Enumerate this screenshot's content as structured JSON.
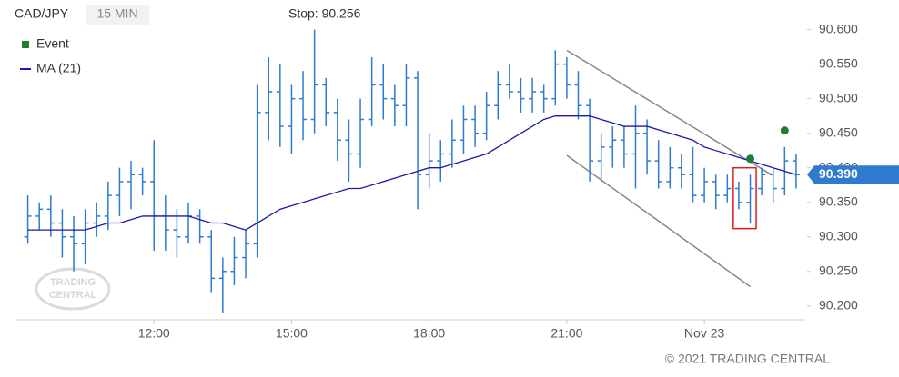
{
  "chart_data": {
    "type": "ohlc",
    "symbol": "CAD/JPY",
    "interval": "15 MIN",
    "stop_label": "Stop: 90.256",
    "xlim": [
      9.0,
      26.2
    ],
    "xticks": [
      {
        "value": 12,
        "label": "12:00"
      },
      {
        "value": 15,
        "label": "15:00"
      },
      {
        "value": 18,
        "label": "18:00"
      },
      {
        "value": 21,
        "label": "21:00"
      },
      {
        "value": 24,
        "label": "Nov 23"
      }
    ],
    "ylim": [
      90.18,
      90.61
    ],
    "yticks": [
      {
        "value": 90.2,
        "label": "90.200"
      },
      {
        "value": 90.25,
        "label": "90.250"
      },
      {
        "value": 90.3,
        "label": "90.300"
      },
      {
        "value": 90.35,
        "label": "90.350"
      },
      {
        "value": 90.4,
        "label": "90.400"
      },
      {
        "value": 90.45,
        "label": "90.450"
      },
      {
        "value": 90.5,
        "label": "90.500"
      },
      {
        "value": 90.55,
        "label": "90.550"
      },
      {
        "value": 90.6,
        "label": "90.600"
      }
    ],
    "bar_color": "#2f7bd0",
    "x": [
      9.25,
      9.5,
      9.75,
      10,
      10.25,
      10.5,
      10.75,
      11,
      11.25,
      11.5,
      11.75,
      12,
      12.25,
      12.5,
      12.75,
      13,
      13.25,
      13.5,
      13.75,
      14,
      14.25,
      14.5,
      14.75,
      15,
      15.25,
      15.5,
      15.75,
      16,
      16.25,
      16.5,
      16.75,
      17,
      17.25,
      17.5,
      17.75,
      18,
      18.25,
      18.5,
      18.75,
      19,
      19.25,
      19.5,
      19.75,
      20,
      20.25,
      20.5,
      20.75,
      21,
      21.25,
      21.5,
      21.75,
      22,
      22.25,
      22.5,
      22.75,
      23,
      23.25,
      23.5,
      23.75,
      24,
      24.25,
      24.5,
      24.75,
      25,
      25.25,
      25.5,
      25.75,
      26
    ],
    "open": [
      90.3,
      90.33,
      90.34,
      90.32,
      90.3,
      90.29,
      90.32,
      90.33,
      90.36,
      90.38,
      90.39,
      90.38,
      90.33,
      90.31,
      90.3,
      90.33,
      90.3,
      90.24,
      90.25,
      90.27,
      90.29,
      90.48,
      90.51,
      90.46,
      90.5,
      90.47,
      90.52,
      90.48,
      90.44,
      90.42,
      90.47,
      90.52,
      90.5,
      90.49,
      90.53,
      90.39,
      90.41,
      90.42,
      90.44,
      90.47,
      90.45,
      90.49,
      90.52,
      90.51,
      90.5,
      90.51,
      90.5,
      90.55,
      90.52,
      90.49,
      90.41,
      90.43,
      90.44,
      90.42,
      90.45,
      90.41,
      90.38,
      90.4,
      90.39,
      90.36,
      90.38,
      90.36,
      90.37,
      90.35,
      90.37,
      90.39,
      90.37,
      90.41
    ],
    "high": [
      90.36,
      90.35,
      90.36,
      90.34,
      90.33,
      90.34,
      90.35,
      90.38,
      90.4,
      90.41,
      90.4,
      90.44,
      90.36,
      90.34,
      90.35,
      90.34,
      90.31,
      90.27,
      90.3,
      90.31,
      90.52,
      90.56,
      90.55,
      90.52,
      90.54,
      90.6,
      90.53,
      90.5,
      90.47,
      90.5,
      90.56,
      90.55,
      90.52,
      90.55,
      90.54,
      90.45,
      90.44,
      90.47,
      90.49,
      90.49,
      90.51,
      90.54,
      90.55,
      90.53,
      90.53,
      90.52,
      90.57,
      90.56,
      90.54,
      90.5,
      90.45,
      90.46,
      90.46,
      90.49,
      90.47,
      90.44,
      90.43,
      90.42,
      90.43,
      90.4,
      90.39,
      90.39,
      90.38,
      90.39,
      90.4,
      90.4,
      90.43,
      90.42
    ],
    "low": [
      90.29,
      90.31,
      90.3,
      90.27,
      90.25,
      90.26,
      90.3,
      90.31,
      90.33,
      90.34,
      90.36,
      90.28,
      90.28,
      90.27,
      90.29,
      90.29,
      90.22,
      90.19,
      90.23,
      90.24,
      90.27,
      90.44,
      90.43,
      90.42,
      90.44,
      90.45,
      90.46,
      90.41,
      90.38,
      90.4,
      90.46,
      90.47,
      90.46,
      90.46,
      90.34,
      90.37,
      90.38,
      90.4,
      90.42,
      90.43,
      90.44,
      90.47,
      90.5,
      90.48,
      90.48,
      90.48,
      90.49,
      90.5,
      90.47,
      90.38,
      90.38,
      90.4,
      90.4,
      90.37,
      90.39,
      90.37,
      90.37,
      90.37,
      90.35,
      90.35,
      90.34,
      90.35,
      90.34,
      90.32,
      90.36,
      90.35,
      90.36,
      90.37
    ],
    "close": [
      90.33,
      90.34,
      90.32,
      90.3,
      90.29,
      90.32,
      90.33,
      90.36,
      90.38,
      90.39,
      90.38,
      90.33,
      90.31,
      90.3,
      90.33,
      90.3,
      90.24,
      90.25,
      90.27,
      90.29,
      90.48,
      90.51,
      90.46,
      90.5,
      90.47,
      90.52,
      90.48,
      90.44,
      90.42,
      90.47,
      90.52,
      90.5,
      90.49,
      90.53,
      90.39,
      90.41,
      90.42,
      90.44,
      90.47,
      90.45,
      90.49,
      90.52,
      90.51,
      90.5,
      90.51,
      90.5,
      90.55,
      90.52,
      90.49,
      90.41,
      90.43,
      90.44,
      90.42,
      90.45,
      90.41,
      90.38,
      90.4,
      90.39,
      90.36,
      90.38,
      90.36,
      90.37,
      90.35,
      90.37,
      90.39,
      90.37,
      90.41,
      90.39
    ],
    "series": [
      {
        "name": "MA (21)",
        "color": "#1a1aa8",
        "values": [
          90.31,
          90.31,
          90.31,
          90.31,
          90.31,
          90.31,
          90.315,
          90.32,
          90.32,
          90.325,
          90.33,
          90.33,
          90.33,
          90.33,
          90.33,
          90.325,
          90.32,
          90.32,
          90.315,
          90.31,
          90.32,
          90.33,
          90.34,
          90.345,
          90.35,
          90.355,
          90.36,
          90.365,
          90.37,
          90.37,
          90.375,
          90.38,
          90.385,
          90.39,
          90.395,
          90.4,
          90.4,
          90.405,
          90.41,
          90.415,
          90.42,
          90.43,
          90.44,
          90.45,
          90.46,
          90.47,
          90.475,
          90.475,
          90.475,
          90.475,
          90.47,
          90.465,
          90.46,
          90.46,
          90.46,
          90.455,
          90.45,
          90.445,
          90.44,
          90.43,
          90.425,
          90.42,
          90.415,
          90.41,
          90.405,
          90.4,
          90.395,
          90.39
        ]
      },
      {
        "name": "Event",
        "color": "#1e7e34",
        "type": "scatter",
        "x": [
          25.0,
          25.75
        ],
        "values": [
          90.413,
          90.454
        ]
      }
    ],
    "trendlines": [
      {
        "x": [
          21.0,
          25.46
        ],
        "values": [
          90.57,
          90.39
        ],
        "color": "#888888"
      },
      {
        "x": [
          21.0,
          25.0
        ],
        "values": [
          90.418,
          90.228
        ],
        "color": "#888888"
      }
    ],
    "highlight": {
      "x": [
        24.63,
        25.13
      ],
      "values": [
        90.4,
        90.312
      ],
      "color": "#d62020"
    },
    "last_price": {
      "value": 90.39,
      "label": "90.390",
      "color": "#2f7bd0"
    },
    "watermark": [
      "TRADING",
      "CENTRAL"
    ],
    "copyright": "© 2021 TRADING CENTRAL"
  }
}
